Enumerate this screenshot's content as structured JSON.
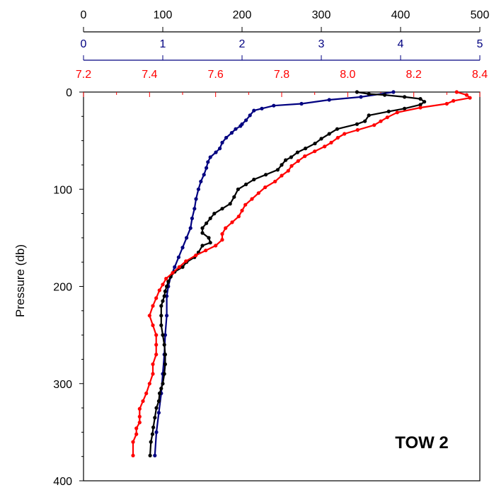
{
  "chart_data": {
    "type": "line",
    "annotation": "TOW 2",
    "ylabel": "Pressure (db)",
    "y_axis": {
      "range": [
        0,
        400
      ],
      "ticks": [
        "0",
        "100",
        "200",
        "300",
        "400"
      ],
      "tick_values": [
        0,
        100,
        200,
        300,
        400
      ],
      "inverted": true
    },
    "x_axes": [
      {
        "id": "black",
        "color": "#000000",
        "range": [
          0,
          500
        ],
        "ticks": [
          "0",
          "100",
          "200",
          "300",
          "400",
          "500"
        ],
        "tick_values": [
          0,
          100,
          200,
          300,
          400,
          500
        ]
      },
      {
        "id": "blue",
        "color": "#000080",
        "range": [
          0,
          5
        ],
        "ticks": [
          "0",
          "1",
          "2",
          "3",
          "4",
          "5"
        ],
        "tick_values": [
          0,
          1,
          2,
          3,
          4,
          5
        ]
      },
      {
        "id": "red",
        "color": "#ff0000",
        "range": [
          7.2,
          8.4
        ],
        "ticks": [
          "7.2",
          "7.4",
          "7.6",
          "7.8",
          "8.0",
          "8.2",
          "8.4"
        ],
        "tick_values": [
          7.2,
          7.4,
          7.6,
          7.8,
          8.0,
          8.2,
          8.4
        ]
      }
    ],
    "series": [
      {
        "axis": "blue",
        "color": "#000080",
        "points": [
          [
            3.91,
            0
          ],
          [
            3.5,
            5
          ],
          [
            3.1,
            8
          ],
          [
            2.75,
            12
          ],
          [
            2.4,
            14
          ],
          [
            2.25,
            17
          ],
          [
            2.15,
            19
          ],
          [
            2.1,
            24
          ],
          [
            2.05,
            29
          ],
          [
            2.0,
            33
          ],
          [
            1.98,
            35
          ],
          [
            1.92,
            38
          ],
          [
            1.87,
            42
          ],
          [
            1.8,
            47
          ],
          [
            1.75,
            52
          ],
          [
            1.72,
            58
          ],
          [
            1.67,
            62
          ],
          [
            1.6,
            67
          ],
          [
            1.57,
            72
          ],
          [
            1.55,
            78
          ],
          [
            1.52,
            85
          ],
          [
            1.48,
            92
          ],
          [
            1.45,
            100
          ],
          [
            1.42,
            110
          ],
          [
            1.4,
            120
          ],
          [
            1.37,
            130
          ],
          [
            1.35,
            140
          ],
          [
            1.3,
            150
          ],
          [
            1.25,
            160
          ],
          [
            1.2,
            170
          ],
          [
            1.15,
            180
          ],
          [
            1.1,
            190
          ],
          [
            1.07,
            200
          ],
          [
            1.05,
            210
          ],
          [
            1.05,
            230
          ],
          [
            1.03,
            250
          ],
          [
            1.02,
            270
          ],
          [
            1.0,
            290
          ],
          [
            0.98,
            310
          ],
          [
            0.95,
            330
          ],
          [
            0.92,
            350
          ],
          [
            0.9,
            374
          ]
        ]
      },
      {
        "axis": "black",
        "color": "#000000",
        "points": [
          [
            345,
            0
          ],
          [
            360,
            2
          ],
          [
            380,
            3
          ],
          [
            405,
            5
          ],
          [
            425,
            7
          ],
          [
            430,
            10
          ],
          [
            425,
            13
          ],
          [
            405,
            17
          ],
          [
            385,
            20
          ],
          [
            360,
            24
          ],
          [
            355,
            30
          ],
          [
            345,
            33
          ],
          [
            320,
            38
          ],
          [
            310,
            43
          ],
          [
            300,
            48
          ],
          [
            292,
            53
          ],
          [
            280,
            58
          ],
          [
            270,
            62
          ],
          [
            262,
            67
          ],
          [
            255,
            70
          ],
          [
            250,
            75
          ],
          [
            245,
            80
          ],
          [
            230,
            85
          ],
          [
            215,
            90
          ],
          [
            205,
            95
          ],
          [
            195,
            100
          ],
          [
            190,
            108
          ],
          [
            185,
            115
          ],
          [
            175,
            120
          ],
          [
            165,
            125
          ],
          [
            160,
            130
          ],
          [
            155,
            135
          ],
          [
            150,
            140
          ],
          [
            150,
            145
          ],
          [
            158,
            150
          ],
          [
            160,
            155
          ],
          [
            150,
            158
          ],
          [
            145,
            165
          ],
          [
            140,
            170
          ],
          [
            130,
            175
          ],
          [
            125,
            180
          ],
          [
            115,
            185
          ],
          [
            110,
            190
          ],
          [
            107,
            195
          ],
          [
            105,
            200
          ],
          [
            103,
            205
          ],
          [
            102,
            210
          ],
          [
            100,
            215
          ],
          [
            98,
            220
          ],
          [
            98,
            230
          ],
          [
            98,
            240
          ],
          [
            100,
            250
          ],
          [
            102,
            260
          ],
          [
            103,
            270
          ],
          [
            103,
            280
          ],
          [
            102,
            290
          ],
          [
            100,
            300
          ],
          [
            98,
            305
          ],
          [
            96,
            310
          ],
          [
            95,
            318
          ],
          [
            92,
            325
          ],
          [
            90,
            335
          ],
          [
            88,
            345
          ],
          [
            87,
            352
          ],
          [
            85,
            360
          ],
          [
            84,
            374
          ]
        ]
      },
      {
        "axis": "red",
        "color": "#ff0000",
        "points": [
          [
            8.33,
            0
          ],
          [
            8.36,
            3
          ],
          [
            8.37,
            6
          ],
          [
            8.32,
            9
          ],
          [
            8.3,
            12
          ],
          [
            8.22,
            16
          ],
          [
            8.15,
            21
          ],
          [
            8.12,
            26
          ],
          [
            8.1,
            30
          ],
          [
            8.08,
            34
          ],
          [
            8.03,
            39
          ],
          [
            7.99,
            43
          ],
          [
            7.97,
            47
          ],
          [
            7.95,
            52
          ],
          [
            7.93,
            56
          ],
          [
            7.9,
            61
          ],
          [
            7.87,
            66
          ],
          [
            7.85,
            71
          ],
          [
            7.83,
            76
          ],
          [
            7.82,
            81
          ],
          [
            7.8,
            86
          ],
          [
            7.78,
            92
          ],
          [
            7.75,
            98
          ],
          [
            7.73,
            104
          ],
          [
            7.71,
            110
          ],
          [
            7.69,
            116
          ],
          [
            7.68,
            122
          ],
          [
            7.67,
            128
          ],
          [
            7.65,
            134
          ],
          [
            7.63,
            140
          ],
          [
            7.62,
            146
          ],
          [
            7.62,
            152
          ],
          [
            7.6,
            158
          ],
          [
            7.57,
            163
          ],
          [
            7.54,
            168
          ],
          [
            7.51,
            174
          ],
          [
            7.49,
            180
          ],
          [
            7.47,
            186
          ],
          [
            7.45,
            192
          ],
          [
            7.44,
            198
          ],
          [
            7.43,
            204
          ],
          [
            7.42,
            212
          ],
          [
            7.41,
            220
          ],
          [
            7.4,
            230
          ],
          [
            7.41,
            240
          ],
          [
            7.42,
            250
          ],
          [
            7.42,
            260
          ],
          [
            7.42,
            270
          ],
          [
            7.41,
            280
          ],
          [
            7.41,
            290
          ],
          [
            7.4,
            300
          ],
          [
            7.39,
            310
          ],
          [
            7.38,
            318
          ],
          [
            7.37,
            326
          ],
          [
            7.37,
            334
          ],
          [
            7.37,
            340
          ],
          [
            7.36,
            346
          ],
          [
            7.36,
            352
          ],
          [
            7.35,
            360
          ],
          [
            7.35,
            374
          ]
        ]
      }
    ]
  }
}
